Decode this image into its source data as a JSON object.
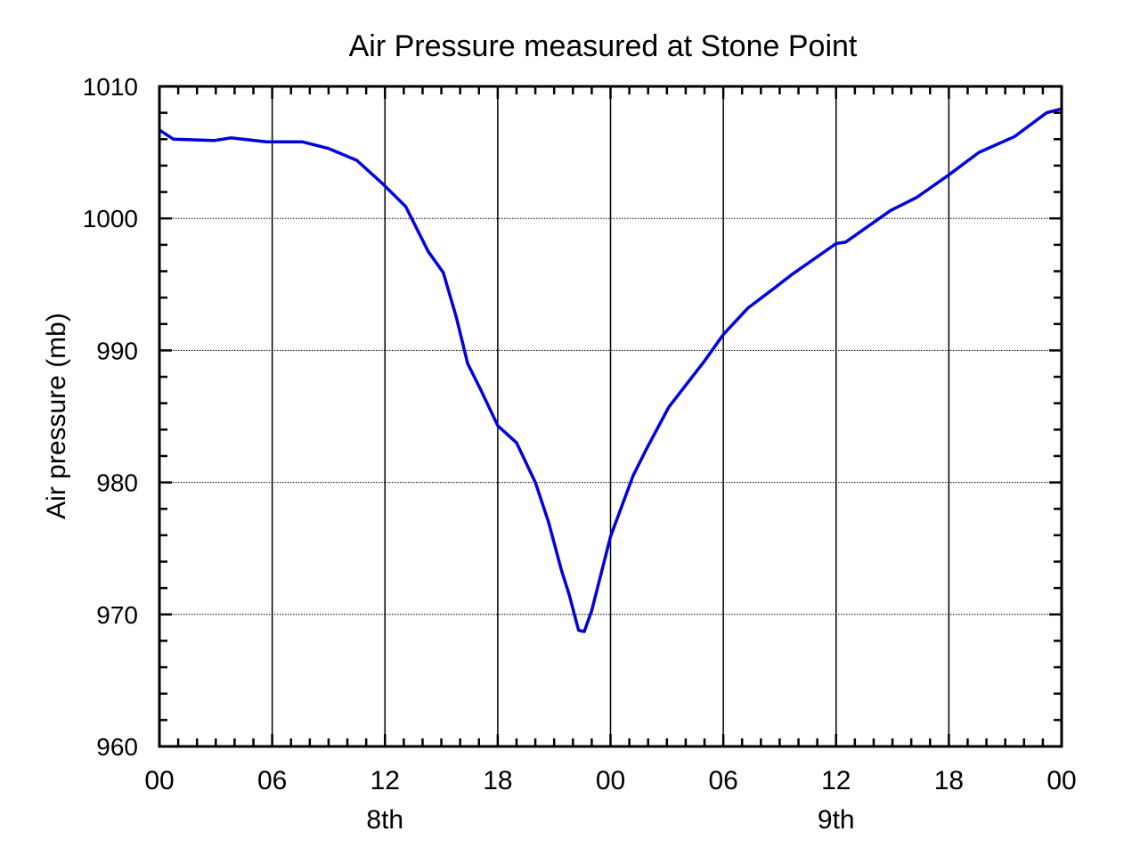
{
  "chart_data": {
    "type": "line",
    "title": "Air Pressure measured at Stone Point",
    "xlabel": "",
    "ylabel": "Air pressure (mb)",
    "xlim": [
      0,
      48
    ],
    "ylim": [
      960,
      1010
    ],
    "grid": true,
    "x_unit": "hours since 00 on 8th",
    "x_ticks": [
      0,
      6,
      12,
      18,
      24,
      30,
      36,
      42,
      48
    ],
    "x_tick_labels": [
      "00",
      "06",
      "12",
      "18",
      "00",
      "06",
      "12",
      "18",
      "00"
    ],
    "x_day_labels": [
      {
        "hour": 12,
        "label": "8th"
      },
      {
        "hour": 36,
        "label": "9th"
      }
    ],
    "y_ticks": [
      960,
      970,
      980,
      990,
      1000,
      1010
    ],
    "y_tick_labels": [
      "960",
      "970",
      "980",
      "990",
      "1000",
      "1010"
    ],
    "series": [
      {
        "name": "Air pressure",
        "color": "#0000dd",
        "x": [
          0,
          0.75,
          2.9,
          3.8,
          5.7,
          7.6,
          9,
          10.5,
          11.9,
          13.1,
          14.3,
          15.1,
          15.8,
          16.4,
          17.1,
          18,
          19,
          20,
          20.7,
          21.4,
          21.8,
          22.3,
          22.6,
          23,
          24,
          25.2,
          25.9,
          27.1,
          29,
          30,
          31.3,
          32.7,
          33.7,
          36,
          36.5,
          38.9,
          40.3,
          42,
          43.6,
          45.5,
          47.2,
          48
        ],
        "y": [
          1006.7,
          1006.0,
          1005.9,
          1006.1,
          1005.8,
          1005.8,
          1005.3,
          1004.4,
          1002.6,
          1000.9,
          997.5,
          995.9,
          992.5,
          989.0,
          987.0,
          984.3,
          983.0,
          980.0,
          977.0,
          973.3,
          971.5,
          968.8,
          968.7,
          970.3,
          975.9,
          980.5,
          982.5,
          985.7,
          989.2,
          991.2,
          993.2,
          994.7,
          995.8,
          998.1,
          998.2,
          1000.6,
          1001.6,
          1003.3,
          1005.0,
          1006.2,
          1008.0,
          1008.3
        ]
      }
    ]
  }
}
